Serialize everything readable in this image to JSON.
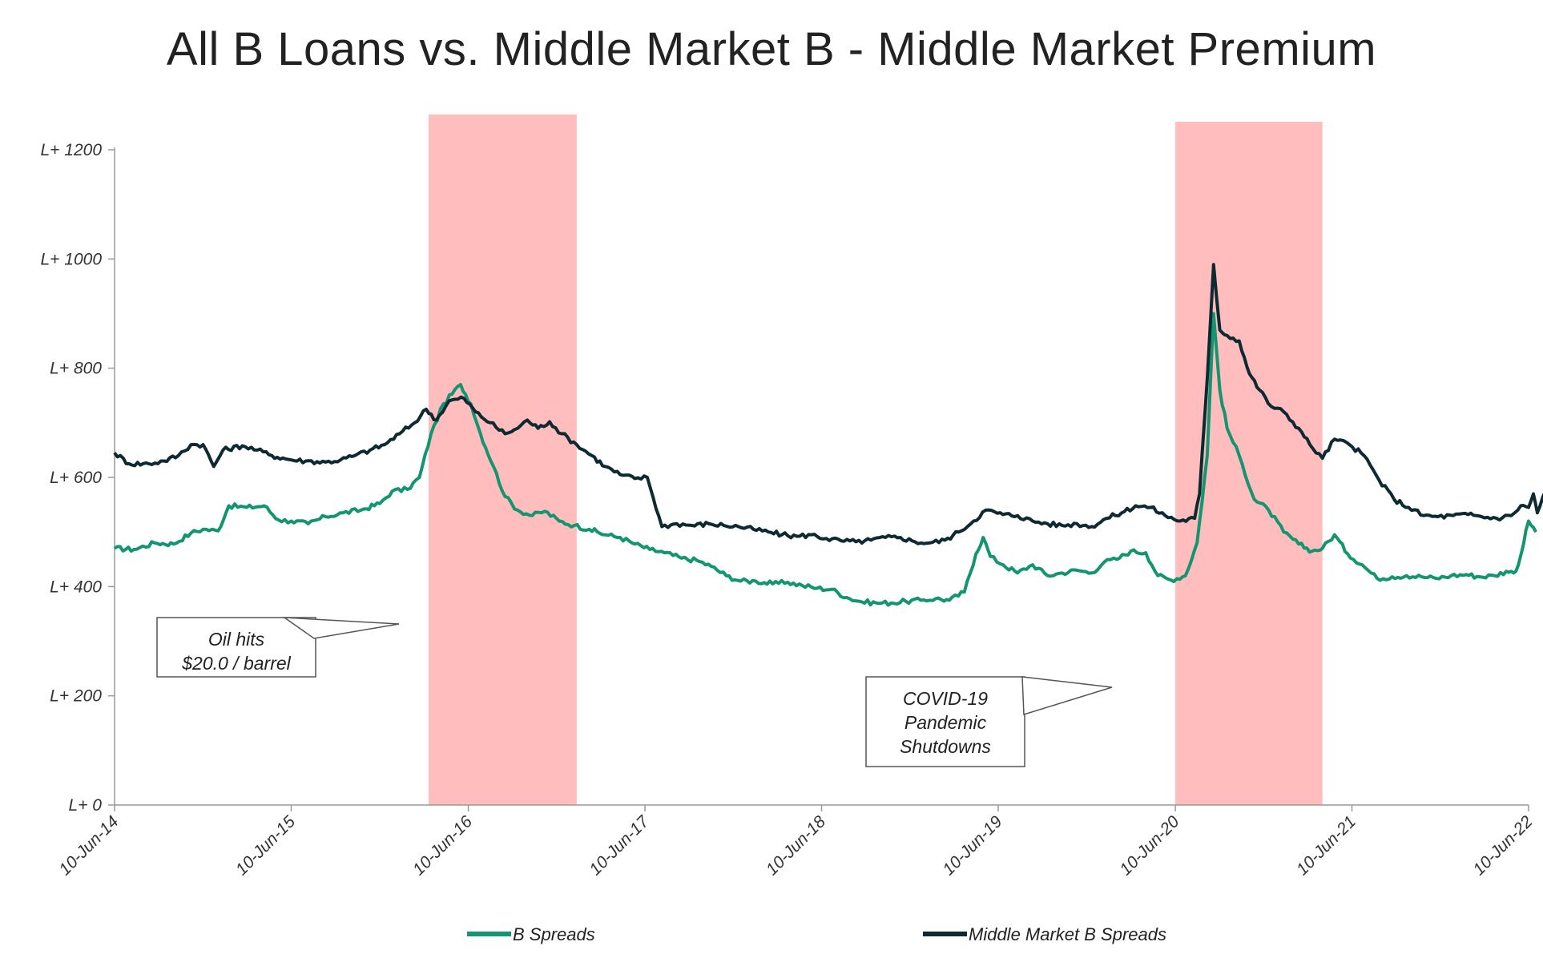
{
  "chart_data": {
    "type": "line",
    "title": "All B Loans vs. Middle Market B - Middle Market Premium",
    "xlabel": "",
    "ylabel": "",
    "ylim": [
      0,
      1200
    ],
    "y_ticks": [
      {
        "value": 0,
        "label": "L+ 0"
      },
      {
        "value": 200,
        "label": "L+ 200"
      },
      {
        "value": 400,
        "label": "L+ 400"
      },
      {
        "value": 600,
        "label": "L+ 600"
      },
      {
        "value": 800,
        "label": "L+ 800"
      },
      {
        "value": 1000,
        "label": "L+ 1000"
      },
      {
        "value": 1200,
        "label": "L+ 1200"
      }
    ],
    "x_range": [
      "2014-06-10",
      "2022-06-10"
    ],
    "x_ticks": [
      {
        "value": "2014-06-10",
        "label": "10-Jun-14"
      },
      {
        "value": "2015-06-10",
        "label": "10-Jun-15"
      },
      {
        "value": "2016-06-10",
        "label": "10-Jun-16"
      },
      {
        "value": "2017-06-10",
        "label": "10-Jun-17"
      },
      {
        "value": "2018-06-10",
        "label": "10-Jun-18"
      },
      {
        "value": "2019-06-10",
        "label": "10-Jun-19"
      },
      {
        "value": "2020-06-10",
        "label": "10-Jun-20"
      },
      {
        "value": "2021-06-10",
        "label": "10-Jun-21"
      },
      {
        "value": "2022-06-10",
        "label": "10-Jun-22"
      }
    ],
    "grid": false,
    "legend_position": "bottom",
    "series": [
      {
        "name": "B Spreads",
        "color": "#13966f",
        "points": [
          [
            "2014-06-10",
            470
          ],
          [
            "2014-07-20",
            468
          ],
          [
            "2014-09-01",
            480
          ],
          [
            "2014-10-10",
            478
          ],
          [
            "2014-11-15",
            498
          ],
          [
            "2014-12-10",
            505
          ],
          [
            "2015-01-10",
            502
          ],
          [
            "2015-02-01",
            548
          ],
          [
            "2015-03-10",
            545
          ],
          [
            "2015-04-15",
            548
          ],
          [
            "2015-05-15",
            522
          ],
          [
            "2015-06-10",
            520
          ],
          [
            "2015-07-15",
            515
          ],
          [
            "2015-08-20",
            528
          ],
          [
            "2015-09-25",
            535
          ],
          [
            "2015-11-01",
            540
          ],
          [
            "2015-12-10",
            552
          ],
          [
            "2016-01-05",
            575
          ],
          [
            "2016-02-05",
            578
          ],
          [
            "2016-03-01",
            600
          ],
          [
            "2016-03-25",
            680
          ],
          [
            "2016-04-20",
            735
          ],
          [
            "2016-05-25",
            770
          ],
          [
            "2016-06-15",
            735
          ],
          [
            "2016-07-05",
            680
          ],
          [
            "2016-08-01",
            620
          ],
          [
            "2016-08-25",
            565
          ],
          [
            "2016-09-20",
            540
          ],
          [
            "2016-10-20",
            530
          ],
          [
            "2016-11-15",
            538
          ],
          [
            "2016-12-15",
            520
          ],
          [
            "2017-01-15",
            512
          ],
          [
            "2017-02-15",
            505
          ],
          [
            "2017-03-20",
            495
          ],
          [
            "2017-04-20",
            490
          ],
          [
            "2017-05-20",
            478
          ],
          [
            "2017-06-20",
            468
          ],
          [
            "2017-07-20",
            462
          ],
          [
            "2017-08-25",
            452
          ],
          [
            "2017-09-25",
            448
          ],
          [
            "2017-10-25",
            437
          ],
          [
            "2017-11-25",
            420
          ],
          [
            "2017-12-25",
            410
          ],
          [
            "2018-01-25",
            410
          ],
          [
            "2018-03-01",
            405
          ],
          [
            "2018-04-01",
            408
          ],
          [
            "2018-05-01",
            402
          ],
          [
            "2018-06-01",
            397
          ],
          [
            "2018-07-01",
            395
          ],
          [
            "2018-08-01",
            380
          ],
          [
            "2018-09-01",
            372
          ],
          [
            "2018-10-01",
            370
          ],
          [
            "2018-11-01",
            370
          ],
          [
            "2018-12-01",
            373
          ],
          [
            "2019-01-01",
            375
          ],
          [
            "2019-02-01",
            378
          ],
          [
            "2019-03-01",
            375
          ],
          [
            "2019-04-01",
            390
          ],
          [
            "2019-04-25",
            460
          ],
          [
            "2019-05-10",
            490
          ],
          [
            "2019-05-25",
            455
          ],
          [
            "2019-06-20",
            440
          ],
          [
            "2019-07-20",
            425
          ],
          [
            "2019-08-20",
            440
          ],
          [
            "2019-09-20",
            420
          ],
          [
            "2019-10-20",
            425
          ],
          [
            "2019-11-20",
            430
          ],
          [
            "2019-12-20",
            425
          ],
          [
            "2020-01-15",
            445
          ],
          [
            "2020-02-10",
            450
          ],
          [
            "2020-03-10",
            465
          ],
          [
            "2020-04-10",
            462
          ],
          [
            "2020-05-05",
            420
          ],
          [
            "2020-06-01",
            412
          ],
          [
            "2020-07-01",
            420
          ],
          [
            "2020-07-25",
            480
          ],
          [
            "2020-08-15",
            640
          ],
          [
            "2020-08-28",
            900
          ],
          [
            "2020-09-10",
            760
          ],
          [
            "2020-09-25",
            690
          ],
          [
            "2020-10-20",
            640
          ],
          [
            "2020-11-20",
            560
          ],
          [
            "2020-12-20",
            540
          ],
          [
            "2021-01-20",
            500
          ],
          [
            "2021-02-20",
            478
          ],
          [
            "2021-03-20",
            465
          ],
          [
            "2021-04-10",
            470
          ],
          [
            "2021-05-05",
            495
          ],
          [
            "2021-06-01",
            460
          ],
          [
            "2021-07-01",
            440
          ],
          [
            "2021-08-01",
            415
          ],
          [
            "2021-09-01",
            418
          ],
          [
            "2021-10-01",
            420
          ],
          [
            "2021-11-01",
            418
          ],
          [
            "2021-12-01",
            415
          ],
          [
            "2022-01-01",
            420
          ],
          [
            "2022-02-01",
            422
          ],
          [
            "2022-03-01",
            418
          ],
          [
            "2022-04-01",
            420
          ],
          [
            "2022-04-25",
            428
          ],
          [
            "2022-05-10",
            425
          ],
          [
            "2022-05-20",
            440
          ],
          [
            "2022-06-10",
            520
          ],
          [
            "2022-06-25",
            500
          ]
        ]
      },
      {
        "name": "Middle Market B  Spreads",
        "color": "#0d2a33",
        "points": [
          [
            "2014-06-10",
            645
          ],
          [
            "2014-07-10",
            625
          ],
          [
            "2014-08-20",
            625
          ],
          [
            "2014-09-20",
            630
          ],
          [
            "2014-10-20",
            640
          ],
          [
            "2014-11-15",
            660
          ],
          [
            "2014-12-10",
            660
          ],
          [
            "2015-01-01",
            620
          ],
          [
            "2015-01-20",
            650
          ],
          [
            "2015-03-01",
            658
          ],
          [
            "2015-04-01",
            650
          ],
          [
            "2015-05-01",
            640
          ],
          [
            "2015-06-10",
            632
          ],
          [
            "2015-07-10",
            630
          ],
          [
            "2015-08-20",
            628
          ],
          [
            "2015-09-20",
            632
          ],
          [
            "2015-10-20",
            640
          ],
          [
            "2015-11-20",
            650
          ],
          [
            "2015-12-20",
            660
          ],
          [
            "2016-01-20",
            680
          ],
          [
            "2016-02-20",
            700
          ],
          [
            "2016-03-15",
            725
          ],
          [
            "2016-04-05",
            705
          ],
          [
            "2016-05-01",
            740
          ],
          [
            "2016-06-01",
            745
          ],
          [
            "2016-06-25",
            720
          ],
          [
            "2016-07-25",
            700
          ],
          [
            "2016-08-25",
            680
          ],
          [
            "2016-09-20",
            690
          ],
          [
            "2016-10-10",
            705
          ],
          [
            "2016-11-01",
            690
          ],
          [
            "2016-11-25",
            702
          ],
          [
            "2016-12-20",
            680
          ],
          [
            "2017-01-20",
            660
          ],
          [
            "2017-02-20",
            640
          ],
          [
            "2017-03-20",
            620
          ],
          [
            "2017-04-20",
            605
          ],
          [
            "2017-05-20",
            598
          ],
          [
            "2017-06-15",
            600
          ],
          [
            "2017-07-15",
            510
          ],
          [
            "2017-08-15",
            515
          ],
          [
            "2017-09-15",
            512
          ],
          [
            "2017-10-20",
            515
          ],
          [
            "2017-11-20",
            512
          ],
          [
            "2017-12-20",
            510
          ],
          [
            "2018-01-20",
            505
          ],
          [
            "2018-02-20",
            500
          ],
          [
            "2018-03-20",
            495
          ],
          [
            "2018-04-20",
            492
          ],
          [
            "2018-05-20",
            495
          ],
          [
            "2018-06-20",
            488
          ],
          [
            "2018-07-20",
            484
          ],
          [
            "2018-08-20",
            482
          ],
          [
            "2018-09-20",
            485
          ],
          [
            "2018-10-20",
            490
          ],
          [
            "2018-11-20",
            490
          ],
          [
            "2018-12-20",
            482
          ],
          [
            "2019-01-20",
            480
          ],
          [
            "2019-02-20",
            485
          ],
          [
            "2019-03-20",
            500
          ],
          [
            "2019-04-20",
            520
          ],
          [
            "2019-05-15",
            540
          ],
          [
            "2019-06-20",
            532
          ],
          [
            "2019-07-20",
            530
          ],
          [
            "2019-08-20",
            520
          ],
          [
            "2019-09-20",
            515
          ],
          [
            "2019-10-20",
            512
          ],
          [
            "2019-11-20",
            515
          ],
          [
            "2019-12-20",
            510
          ],
          [
            "2020-01-20",
            525
          ],
          [
            "2020-02-20",
            535
          ],
          [
            "2020-03-20",
            548
          ],
          [
            "2020-04-20",
            545
          ],
          [
            "2020-05-20",
            530
          ],
          [
            "2020-06-20",
            520
          ],
          [
            "2020-07-20",
            525
          ],
          [
            "2020-07-30",
            570
          ],
          [
            "2020-08-15",
            780
          ],
          [
            "2020-08-28",
            990
          ],
          [
            "2020-09-10",
            870
          ],
          [
            "2020-09-25",
            860
          ],
          [
            "2020-10-20",
            850
          ],
          [
            "2020-11-10",
            790
          ],
          [
            "2020-12-01",
            760
          ],
          [
            "2020-12-25",
            730
          ],
          [
            "2021-01-20",
            720
          ],
          [
            "2021-02-20",
            690
          ],
          [
            "2021-03-15",
            660
          ],
          [
            "2021-04-10",
            635
          ],
          [
            "2021-05-05",
            670
          ],
          [
            "2021-06-05",
            660
          ],
          [
            "2021-07-05",
            640
          ],
          [
            "2021-08-05",
            595
          ],
          [
            "2021-09-05",
            560
          ],
          [
            "2021-10-05",
            545
          ],
          [
            "2021-11-05",
            530
          ],
          [
            "2021-12-05",
            528
          ],
          [
            "2022-01-05",
            530
          ],
          [
            "2022-02-05",
            532
          ],
          [
            "2022-03-05",
            528
          ],
          [
            "2022-04-05",
            525
          ],
          [
            "2022-05-05",
            530
          ],
          [
            "2022-05-25",
            548
          ],
          [
            "2022-06-10",
            545
          ],
          [
            "2022-06-20",
            570
          ],
          [
            "2022-06-28",
            535
          ],
          [
            "2022-07-15",
            575
          ],
          [
            "2022-07-25",
            580
          ]
        ]
      }
    ],
    "shaded_periods": [
      {
        "start": "2016-03-20",
        "end": "2017-01-20",
        "color": "#ffbdbd"
      },
      {
        "start": "2020-06-10",
        "end": "2021-04-10",
        "color": "#ffbdbd"
      }
    ],
    "annotations": [
      {
        "lines": [
          "Oil hits",
          "$20.0 / barrel"
        ]
      },
      {
        "lines": [
          "COVID-19",
          "Pandemic",
          "Shutdowns"
        ]
      }
    ]
  }
}
